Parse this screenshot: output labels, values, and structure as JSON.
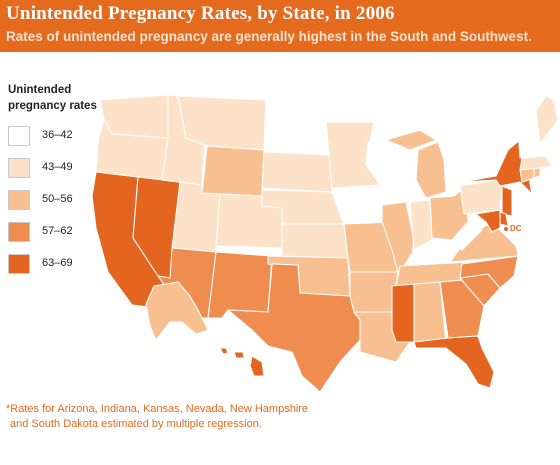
{
  "header": {
    "title": "Unintended Pregnancy Rates, by State, in 2006",
    "subtitle": "Rates of unintended pregnancy are generally highest in the South and Southwest."
  },
  "legend": {
    "title_line1": "Unintended",
    "title_line2": "pregnancy rates",
    "items": [
      {
        "label": "36–42",
        "color": "#ffffff"
      },
      {
        "label": "43–49",
        "color": "#fde2ca"
      },
      {
        "label": "50–56",
        "color": "#f8bf90"
      },
      {
        "label": "57–62",
        "color": "#ef8c4f"
      },
      {
        "label": "63–69",
        "color": "#e4651f"
      }
    ]
  },
  "map": {
    "dc_label": "DC",
    "bin_colors": [
      "#ffffff",
      "#fde2ca",
      "#f8bf90",
      "#ef8c4f",
      "#e4651f"
    ],
    "state_bins": {
      "WA": 1,
      "OR": 1,
      "CA": 4,
      "NV": 4,
      "ID": 1,
      "MT": 1,
      "WY": 2,
      "UT": 1,
      "AZ": 3,
      "CO": 1,
      "NM": 3,
      "ND": 0,
      "SD": 1,
      "NE": 1,
      "KS": 1,
      "OK": 2,
      "TX": 3,
      "MN": 1,
      "IA": 0,
      "MO": 2,
      "AR": 2,
      "LA": 2,
      "WI": 0,
      "IL": 2,
      "MI": 2,
      "IN": 1,
      "OH": 2,
      "KY": 0,
      "TN": 2,
      "MS": 4,
      "AL": 2,
      "GA": 3,
      "FL": 4,
      "SC": 3,
      "NC": 3,
      "VA": 2,
      "WV": 0,
      "PA": 1,
      "NY": 4,
      "NJ": 4,
      "DE": 4,
      "MD": 4,
      "CT": 2,
      "RI": 2,
      "MA": 1,
      "VT": 0,
      "NH": 0,
      "ME": 1,
      "AK": 2,
      "HI": 4
    }
  },
  "footnote": {
    "line1": "*Rates for Arizona, Indiana, Kansas, Nevada, New Hampshire",
    "line2": "and South Dakota estimated by multiple regression."
  }
}
